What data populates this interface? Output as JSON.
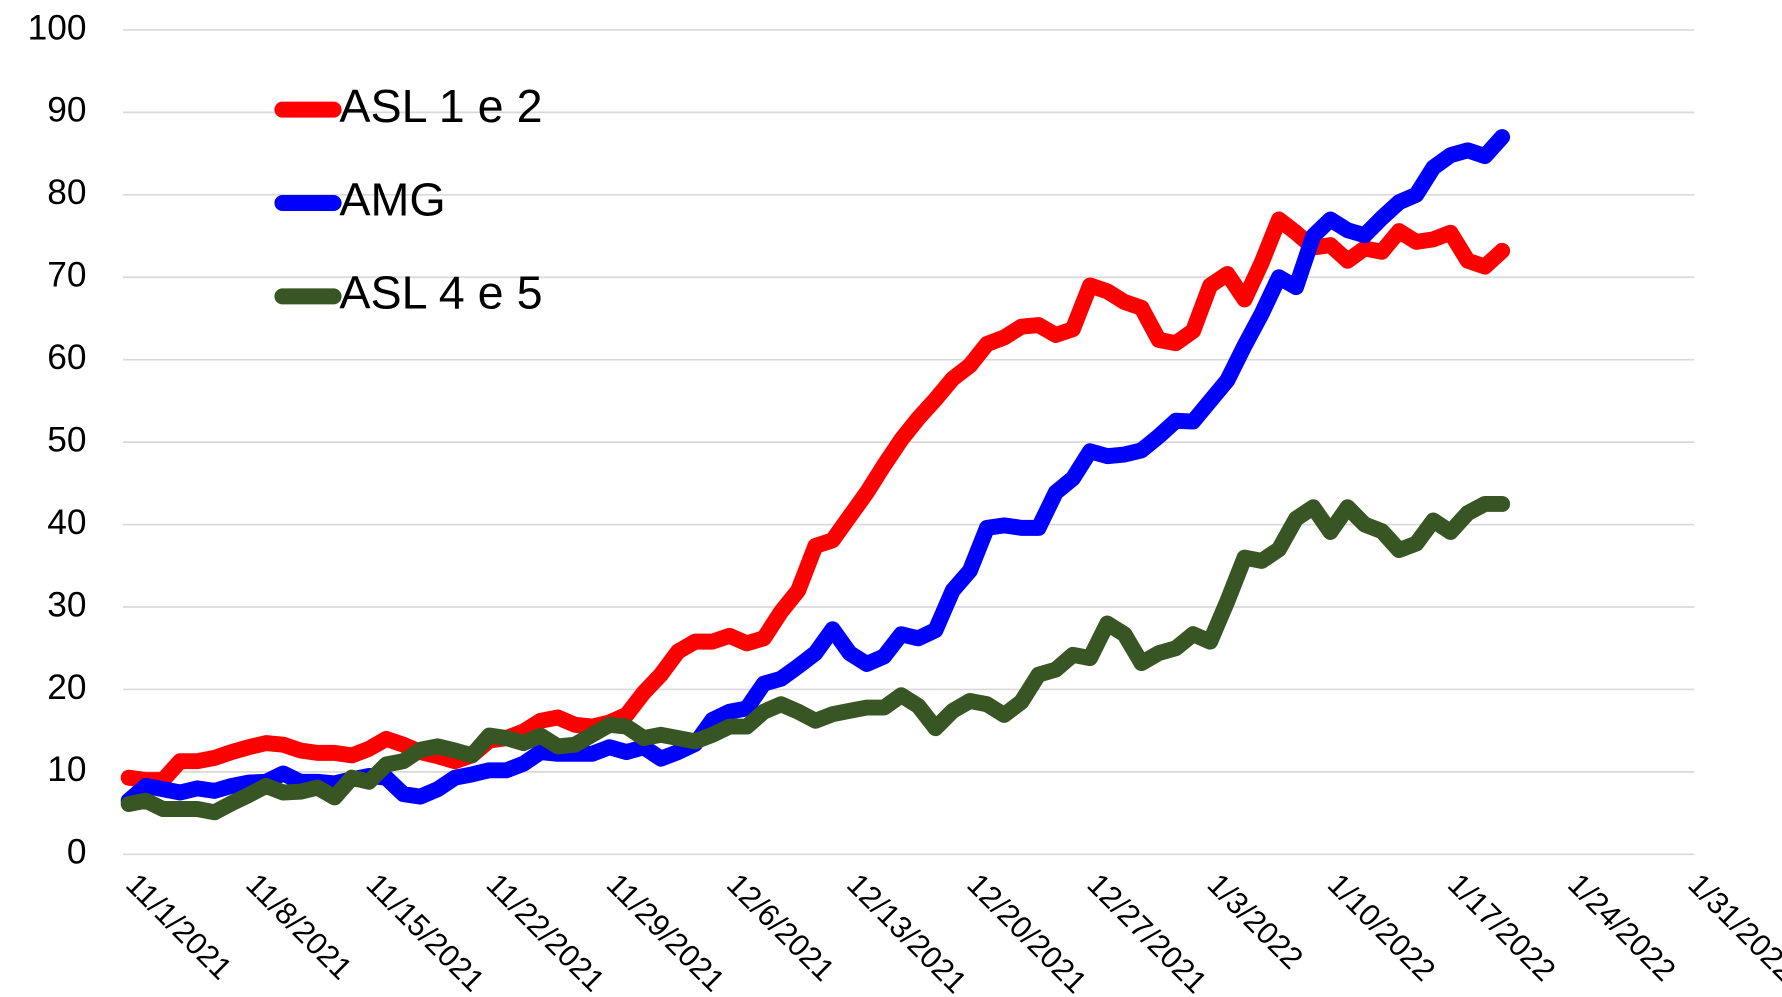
{
  "chart_data": {
    "type": "line",
    "x": [
      "11/1/2021",
      "11/2/2021",
      "11/3/2021",
      "11/4/2021",
      "11/5/2021",
      "11/6/2021",
      "11/7/2021",
      "11/8/2021",
      "11/9/2021",
      "11/10/2021",
      "11/11/2021",
      "11/12/2021",
      "11/13/2021",
      "11/14/2021",
      "11/15/2021",
      "11/16/2021",
      "11/17/2021",
      "11/18/2021",
      "11/19/2021",
      "11/20/2021",
      "11/21/2021",
      "11/22/2021",
      "11/23/2021",
      "11/24/2021",
      "11/25/2021",
      "11/26/2021",
      "11/27/2021",
      "11/28/2021",
      "11/29/2021",
      "11/30/2021",
      "12/1/2021",
      "12/2/2021",
      "12/3/2021",
      "12/4/2021",
      "12/5/2021",
      "12/6/2021",
      "12/7/2021",
      "12/8/2021",
      "12/9/2021",
      "12/10/2021",
      "12/11/2021",
      "12/12/2021",
      "12/13/2021",
      "12/14/2021",
      "12/15/2021",
      "12/16/2021",
      "12/17/2021",
      "12/18/2021",
      "12/19/2021",
      "12/20/2021",
      "12/21/2021",
      "12/22/2021",
      "12/23/2021",
      "12/24/2021",
      "12/25/2021",
      "12/26/2021",
      "12/27/2021",
      "12/28/2021",
      "12/29/2021",
      "12/30/2021",
      "12/31/2021",
      "1/1/2022",
      "1/2/2022",
      "1/3/2022",
      "1/4/2022",
      "1/5/2022",
      "1/6/2022",
      "1/7/2022",
      "1/8/2022",
      "1/9/2022",
      "1/10/2022",
      "1/11/2022",
      "1/12/2022",
      "1/13/2022",
      "1/14/2022",
      "1/15/2022",
      "1/16/2022",
      "1/17/2022",
      "1/18/2022",
      "1/19/2022",
      "1/20/2022"
    ],
    "series": [
      {
        "name": "ASL 1 e 2",
        "color": "#ff0000",
        "values": [
          9.3,
          9,
          9,
          11.3,
          11.3,
          11.7,
          12.4,
          13,
          13.5,
          13.3,
          12.6,
          12.3,
          12.3,
          12,
          12.8,
          14,
          13.3,
          12.4,
          11.9,
          11.3,
          12,
          13.8,
          14.1,
          14.9,
          16.2,
          16.6,
          15.7,
          15.5,
          16,
          16.9,
          19.6,
          21.8,
          24.6,
          25.8,
          25.8,
          26.5,
          25.6,
          26.2,
          29.4,
          32,
          37.4,
          38.1,
          41,
          43.9,
          47.2,
          50.3,
          52.9,
          55.2,
          57.7,
          59.3,
          61.9,
          62.7,
          64,
          64.2,
          63,
          63.7,
          69,
          68.3,
          67,
          66.3,
          62.4,
          62,
          63.5,
          69,
          70.4,
          67.3,
          71.8,
          77,
          75.4,
          73.6,
          73.9,
          72,
          73.5,
          73.1,
          75.6,
          74.3,
          74.6,
          75.4,
          72,
          71.3,
          73.2
        ]
      },
      {
        "name": "AMG",
        "color": "#0000ff",
        "values": [
          6.5,
          8.3,
          7.9,
          7.5,
          8,
          7.7,
          8.3,
          8.7,
          8.8,
          9.8,
          8.8,
          8.8,
          8.6,
          9.1,
          9.5,
          9.3,
          7.3,
          7,
          7.9,
          9.3,
          9.7,
          10.2,
          10.2,
          11,
          12.4,
          12.2,
          12.2,
          12.2,
          13,
          12.4,
          13,
          11.6,
          12.4,
          13.4,
          16.3,
          17.3,
          17.7,
          20.7,
          21.3,
          22.8,
          24.4,
          27.3,
          24.4,
          23.1,
          24,
          26.7,
          26.2,
          27.2,
          32,
          34.4,
          39.6,
          39.9,
          39.6,
          39.6,
          43.9,
          45.6,
          48.9,
          48.3,
          48.5,
          49,
          50.7,
          52.6,
          52.5,
          55,
          57.5,
          61.7,
          65.6,
          70,
          68.8,
          75,
          77,
          75.7,
          75.1,
          77.2,
          79.1,
          80,
          83.3,
          84.8,
          85.4,
          84.7,
          87
        ]
      },
      {
        "name": "ASL 4 e 5",
        "color": "#375623",
        "values": [
          6.1,
          6.5,
          5.5,
          5.5,
          5.5,
          5.1,
          6.2,
          7.2,
          8.3,
          7.5,
          7.6,
          8.1,
          6.9,
          9.3,
          8.8,
          10.9,
          11.3,
          12.7,
          13.1,
          12.6,
          12,
          14.4,
          14.1,
          13.5,
          14.4,
          13.1,
          13.3,
          14.5,
          15.7,
          15.5,
          14.1,
          14.5,
          14.1,
          13.7,
          14.5,
          15.5,
          15.5,
          17.3,
          18.2,
          17.3,
          16.2,
          17,
          17.4,
          17.8,
          17.8,
          19.3,
          18,
          15.3,
          17.4,
          18.6,
          18.2,
          16.9,
          18.5,
          21.8,
          22.4,
          24.2,
          23.8,
          28,
          26.7,
          23.2,
          24.4,
          25,
          26.7,
          25.8,
          30.7,
          36,
          35.6,
          37,
          40.7,
          42.1,
          39.1,
          42.1,
          40,
          39.2,
          36.9,
          37.7,
          40.5,
          39.1,
          41.4,
          42.5,
          42.5
        ]
      }
    ],
    "xlim": [
      "11/1/2021",
      "1/31/2022"
    ],
    "xticks": [
      "11/1/2021",
      "11/8/2021",
      "11/15/2021",
      "11/22/2021",
      "11/29/2021",
      "12/6/2021",
      "12/13/2021",
      "12/20/2021",
      "12/27/2021",
      "1/3/2022",
      "1/10/2022",
      "1/17/2022",
      "1/24/2022",
      "1/31/2022"
    ],
    "ylim": [
      0,
      100
    ],
    "yticks": [
      0,
      10,
      20,
      30,
      40,
      50,
      60,
      70,
      80,
      90,
      100
    ],
    "grid": true,
    "legend": "upper left"
  }
}
